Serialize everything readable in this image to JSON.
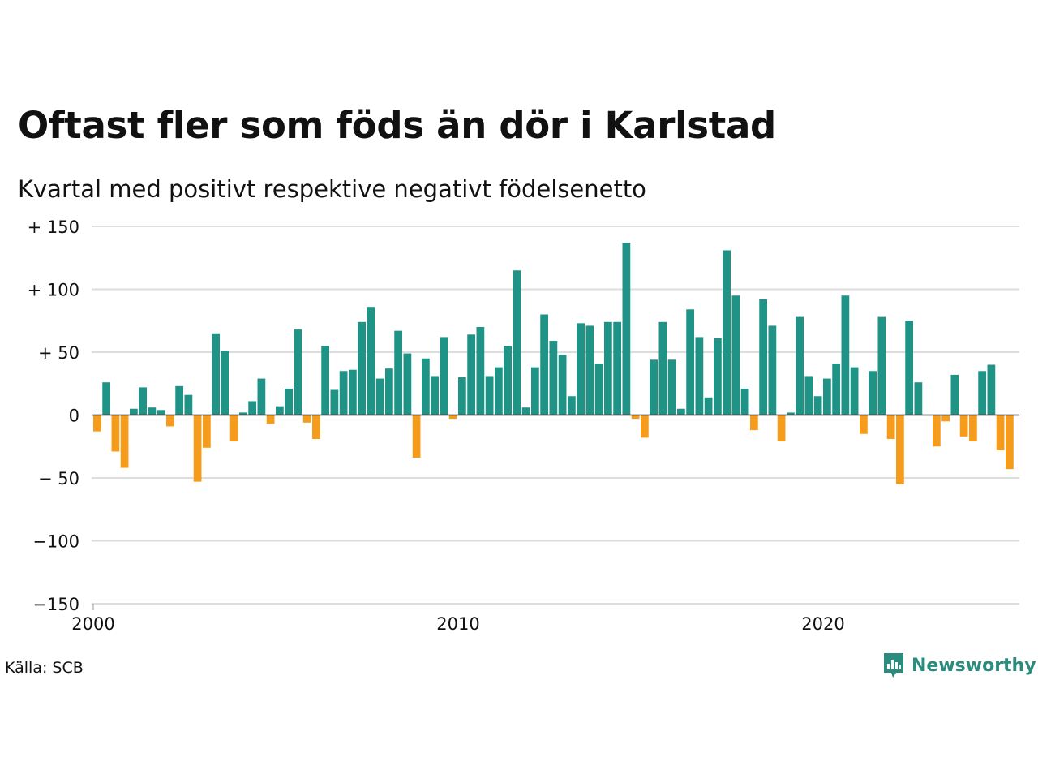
{
  "header": {
    "title": "Oftast fler som föds än dör i Karlstad",
    "subtitle": "Kvartal med positivt respektive negativt födelsenetto"
  },
  "footer": {
    "source": "Källa: SCB",
    "brand": "Newsworthy",
    "brand_icon": "newsworthy-logo-icon"
  },
  "colors": {
    "positive": "#1f9486",
    "negative": "#f59c1c",
    "brand": "#2a8c7c",
    "grid": "#dddddd",
    "axis": "#222222"
  },
  "chart_data": {
    "type": "bar",
    "title": "Oftast fler som föds än dör i Karlstad",
    "subtitle": "Kvartal med positivt respektive negativt födelsenetto",
    "xlabel": "",
    "ylabel": "",
    "ylim": [
      -150,
      150
    ],
    "yticks": [
      150,
      100,
      50,
      0,
      -50,
      -100,
      -150
    ],
    "ytick_labels": [
      "+ 150",
      "+ 100",
      "+  50",
      "0",
      "− 50",
      "−100",
      "−150"
    ],
    "xticks": [
      2000,
      2010,
      2020
    ],
    "xtick_labels": [
      "2000",
      "2010",
      "2020"
    ],
    "grid": true,
    "x_start_year": 2000,
    "values": [
      -13,
      26,
      -29,
      -42,
      5,
      22,
      6,
      4,
      -9,
      23,
      16,
      -53,
      -26,
      65,
      51,
      -21,
      2,
      11,
      29,
      -7,
      7,
      21,
      68,
      -6,
      -19,
      55,
      20,
      35,
      36,
      74,
      86,
      29,
      37,
      67,
      49,
      -34,
      45,
      31,
      62,
      -3,
      30,
      64,
      70,
      31,
      38,
      55,
      115,
      6,
      38,
      80,
      59,
      48,
      15,
      73,
      71,
      41,
      74,
      74,
      137,
      -3,
      -18,
      44,
      74,
      44,
      5,
      84,
      62,
      14,
      61,
      131,
      95,
      21,
      -12,
      92,
      71,
      -21,
      2,
      78,
      31,
      15,
      29,
      41,
      95,
      38,
      -15,
      35,
      78,
      -19,
      -55,
      75,
      26,
      0,
      -25,
      -5,
      32,
      -17,
      -21,
      35,
      40,
      -28,
      -43
    ]
  }
}
